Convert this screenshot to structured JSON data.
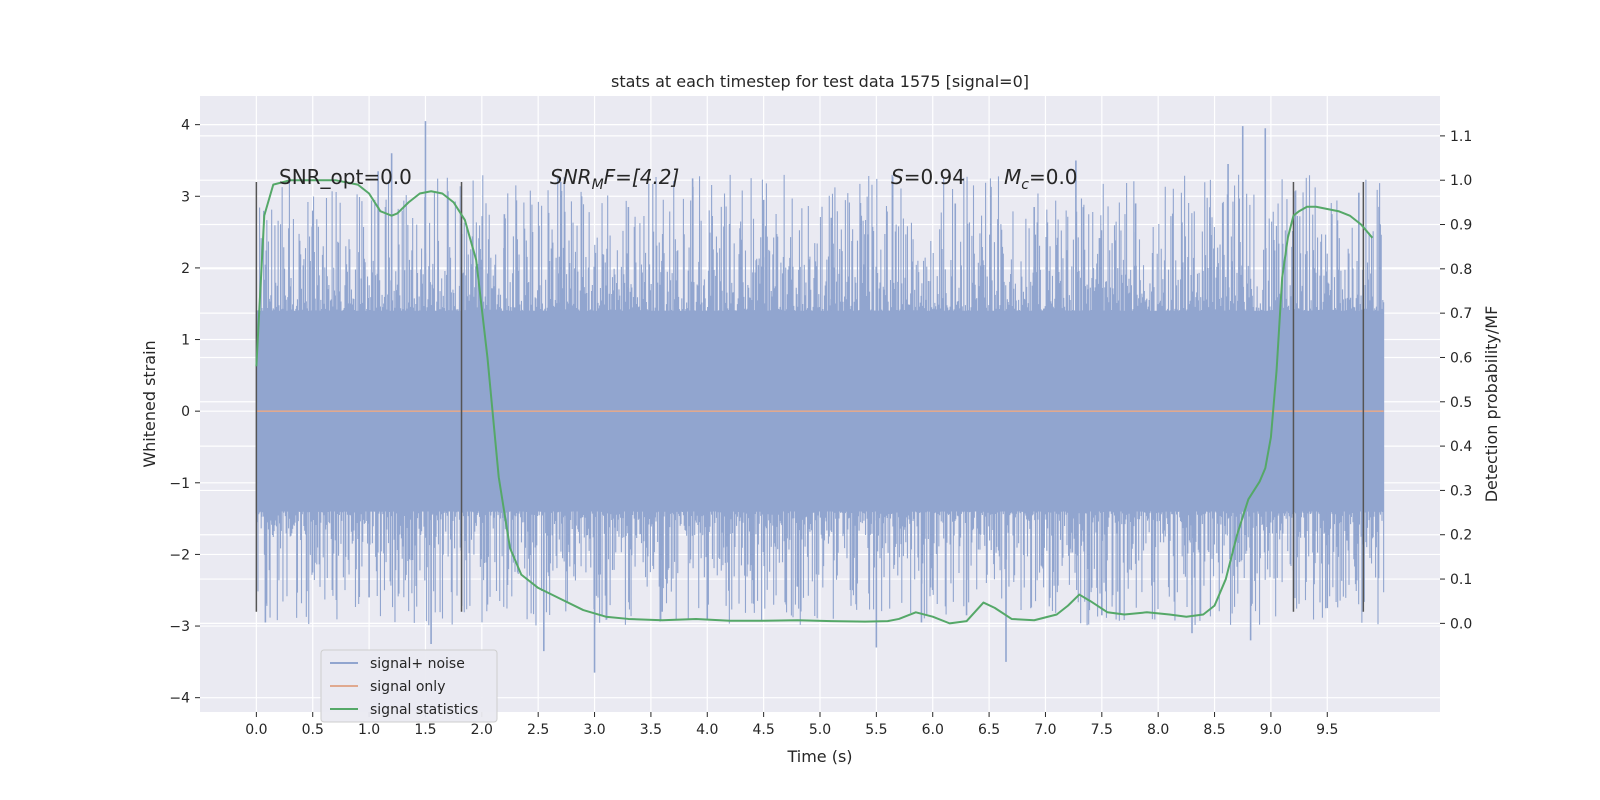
{
  "chart_data": {
    "type": "line",
    "title": "stats at each timestep for test data 1575 [signal=0]",
    "xlabel": "Time (s)",
    "ylabel": "Whitened strain",
    "ylabel_right": "Detection probability/MF",
    "xlim": [
      -0.5,
      10.5
    ],
    "ylim": [
      -4.2,
      4.4
    ],
    "ylim_right": [
      -0.2,
      1.19
    ],
    "x_ticks": [
      0.0,
      0.5,
      1.0,
      1.5,
      2.0,
      2.5,
      3.0,
      3.5,
      4.0,
      4.5,
      5.0,
      5.5,
      6.0,
      6.5,
      7.0,
      7.5,
      8.0,
      8.5,
      9.0,
      9.5
    ],
    "x_tick_labels": [
      "0.0",
      "0.5",
      "1.0",
      "1.5",
      "2.0",
      "2.5",
      "3.0",
      "3.5",
      "4.0",
      "4.5",
      "5.0",
      "5.5",
      "6.0",
      "6.5",
      "7.0",
      "7.5",
      "8.0",
      "8.5",
      "9.0",
      "9.5"
    ],
    "y_ticks": [
      -4,
      -3,
      -2,
      -1,
      0,
      1,
      2,
      3,
      4
    ],
    "y_tick_labels": [
      "−4",
      "−3",
      "−2",
      "−1",
      "0",
      "1",
      "2",
      "3",
      "4"
    ],
    "y_ticks_right": [
      0.0,
      0.1,
      0.2,
      0.3,
      0.4,
      0.5,
      0.6,
      0.7,
      0.8,
      0.9,
      1.0,
      1.1
    ],
    "y_tick_labels_right": [
      "0.0",
      "0.1",
      "0.2",
      "0.3",
      "0.4",
      "0.5",
      "0.6",
      "0.7",
      "0.8",
      "0.9",
      "1.0",
      "1.1"
    ],
    "grid": true,
    "legend_position": "lower-left",
    "annotations": {
      "snr_opt": "SNR_opt=0.0",
      "snr_mf_base": "SNR",
      "snr_mf_sub": "M",
      "snr_mf_rest": "F=[4.2]",
      "s_var": "S",
      "s_val": "=0.94",
      "mc_var": "M",
      "mc_sub": "c",
      "mc_val": "=0.0"
    },
    "vertical_markers": [
      {
        "x": 0.0,
        "y_range": [
          -2.8,
          3.2
        ]
      },
      {
        "x": 1.82,
        "y_range": [
          -2.8,
          3.2
        ]
      },
      {
        "x": 9.2,
        "y_range": [
          -2.8,
          3.2
        ]
      },
      {
        "x": 9.82,
        "y_range": [
          -2.8,
          3.2
        ]
      }
    ],
    "series": [
      {
        "name": "signal+ noise",
        "color": "#91a5cf",
        "axis": "left",
        "x_range": [
          0.0,
          10.0
        ],
        "envelope": [
          1.4,
          -1.4
        ],
        "spikes": [
          {
            "x": 1.5,
            "y": 4.05
          },
          {
            "x": 8.75,
            "y": 3.98
          },
          {
            "x": 8.95,
            "y": 3.95
          },
          {
            "x": 7.27,
            "y": 3.5
          },
          {
            "x": 1.2,
            "y": 3.6
          },
          {
            "x": 1.08,
            "y": 3.35
          },
          {
            "x": 3.87,
            "y": 3.25
          },
          {
            "x": 2.7,
            "y": 3.2
          },
          {
            "x": 8.62,
            "y": 3.45
          },
          {
            "x": 9.78,
            "y": 3.05
          },
          {
            "x": 3.0,
            "y": -3.65
          },
          {
            "x": 2.55,
            "y": -3.35
          },
          {
            "x": 6.65,
            "y": -3.5
          },
          {
            "x": 5.5,
            "y": -3.3
          },
          {
            "x": 8.82,
            "y": -3.2
          },
          {
            "x": 1.55,
            "y": -3.25
          },
          {
            "x": 0.08,
            "y": -2.95
          },
          {
            "x": 8.3,
            "y": -3.1
          },
          {
            "x": 0.5,
            "y": 2.8
          },
          {
            "x": 5.1,
            "y": 2.7
          },
          {
            "x": 6.2,
            "y": 2.9
          },
          {
            "x": 4.5,
            "y": 2.95
          },
          {
            "x": 3.3,
            "y": 2.85
          },
          {
            "x": 7.8,
            "y": 2.9
          },
          {
            "x": 6.9,
            "y": 2.85
          },
          {
            "x": 2.2,
            "y": 2.75
          },
          {
            "x": 4.0,
            "y": -2.9
          },
          {
            "x": 7.5,
            "y": -2.85
          },
          {
            "x": 5.9,
            "y": -2.95
          },
          {
            "x": 9.5,
            "y": -2.75
          },
          {
            "x": 3.6,
            "y": -2.8
          },
          {
            "x": 2.05,
            "y": -2.7
          },
          {
            "x": 6.3,
            "y": -2.85
          },
          {
            "x": 1.0,
            "y": -2.6
          },
          {
            "x": 4.7,
            "y": -2.7
          },
          {
            "x": 9.9,
            "y": 1.6
          }
        ]
      },
      {
        "name": "signal only",
        "color": "#e0a98f",
        "axis": "left",
        "x": [
          0.0,
          10.0
        ],
        "y": [
          0.0,
          0.0
        ]
      },
      {
        "name": "signal statistics",
        "color": "#55a868",
        "axis": "right",
        "x": [
          0.0,
          0.07,
          0.15,
          0.3,
          0.5,
          0.7,
          0.9,
          1.0,
          1.1,
          1.2,
          1.25,
          1.35,
          1.45,
          1.55,
          1.65,
          1.75,
          1.85,
          1.95,
          2.05,
          2.15,
          2.25,
          2.35,
          2.5,
          2.7,
          2.9,
          3.1,
          3.3,
          3.6,
          3.9,
          4.2,
          4.5,
          4.8,
          5.1,
          5.4,
          5.6,
          5.7,
          5.85,
          6.0,
          6.15,
          6.3,
          6.45,
          6.55,
          6.7,
          6.9,
          7.1,
          7.2,
          7.3,
          7.4,
          7.55,
          7.7,
          7.9,
          8.1,
          8.25,
          8.4,
          8.5,
          8.6,
          8.7,
          8.8,
          8.9,
          8.95,
          9.0,
          9.05,
          9.1,
          9.15,
          9.2,
          9.25,
          9.32,
          9.4,
          9.5,
          9.6,
          9.7,
          9.8,
          9.9
        ],
        "y": [
          0.58,
          0.92,
          0.99,
          1.0,
          1.0,
          1.0,
          0.99,
          0.97,
          0.93,
          0.92,
          0.925,
          0.95,
          0.97,
          0.975,
          0.97,
          0.95,
          0.91,
          0.82,
          0.6,
          0.33,
          0.17,
          0.11,
          0.08,
          0.055,
          0.03,
          0.015,
          0.01,
          0.007,
          0.01,
          0.006,
          0.006,
          0.007,
          0.005,
          0.004,
          0.005,
          0.01,
          0.025,
          0.015,
          0.0,
          0.005,
          0.047,
          0.035,
          0.01,
          0.007,
          0.02,
          0.04,
          0.065,
          0.05,
          0.025,
          0.02,
          0.025,
          0.02,
          0.015,
          0.02,
          0.04,
          0.1,
          0.2,
          0.28,
          0.32,
          0.35,
          0.42,
          0.57,
          0.78,
          0.87,
          0.92,
          0.93,
          0.94,
          0.94,
          0.935,
          0.93,
          0.92,
          0.9,
          0.87
        ]
      }
    ]
  }
}
